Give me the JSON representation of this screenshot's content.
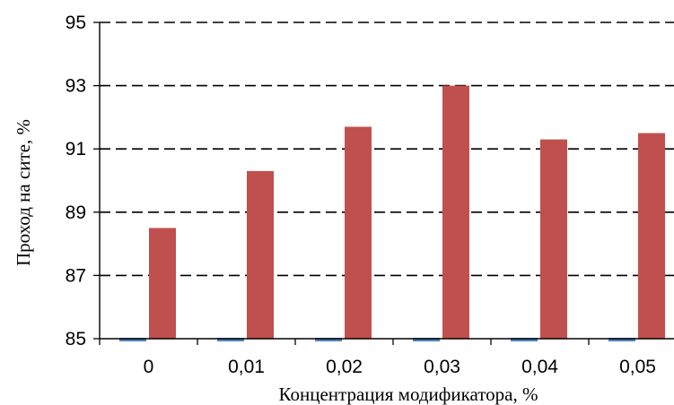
{
  "chart_data": {
    "type": "bar",
    "title": "",
    "xlabel": "Концентрация модификатора, %",
    "ylabel": "Проход на сите, %",
    "categories": [
      "0",
      "0,01",
      "0,02",
      "0,03",
      "0,04",
      "0,05"
    ],
    "series": [
      {
        "values": [
          85,
          85,
          85,
          85,
          85,
          85
        ],
        "color": "#4F81BD"
      },
      {
        "values": [
          88.5,
          90.3,
          91.7,
          93.0,
          91.3,
          91.5
        ],
        "color": "#C0504D"
      }
    ],
    "ylim": [
      85,
      95
    ],
    "yticks": [
      "85",
      "87",
      "89",
      "91",
      "93",
      "95"
    ],
    "grid": "horizontal dashed",
    "legend": "none"
  }
}
